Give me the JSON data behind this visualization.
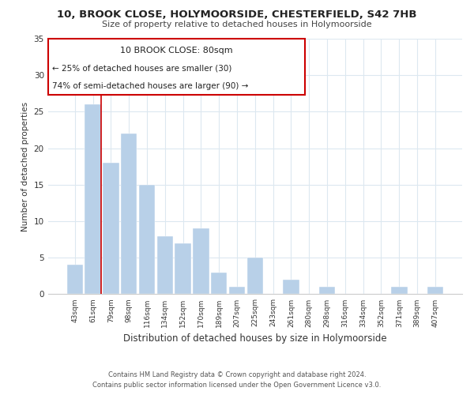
{
  "title": "10, BROOK CLOSE, HOLYMOORSIDE, CHESTERFIELD, S42 7HB",
  "subtitle": "Size of property relative to detached houses in Holymoorside",
  "xlabel": "Distribution of detached houses by size in Holymoorside",
  "ylabel": "Number of detached properties",
  "categories": [
    "43sqm",
    "61sqm",
    "79sqm",
    "98sqm",
    "116sqm",
    "134sqm",
    "152sqm",
    "170sqm",
    "189sqm",
    "207sqm",
    "225sqm",
    "243sqm",
    "261sqm",
    "280sqm",
    "298sqm",
    "316sqm",
    "334sqm",
    "352sqm",
    "371sqm",
    "389sqm",
    "407sqm"
  ],
  "values": [
    4,
    26,
    18,
    22,
    15,
    8,
    7,
    9,
    3,
    1,
    5,
    0,
    2,
    0,
    1,
    0,
    0,
    0,
    1,
    0,
    1
  ],
  "bar_color": "#b8d0e8",
  "highlight_line_color": "#cc0000",
  "ylim": [
    0,
    35
  ],
  "yticks": [
    0,
    5,
    10,
    15,
    20,
    25,
    30,
    35
  ],
  "annotation_title": "10 BROOK CLOSE: 80sqm",
  "annotation_line1": "← 25% of detached houses are smaller (30)",
  "annotation_line2": "74% of semi-detached houses are larger (90) →",
  "footer_line1": "Contains HM Land Registry data © Crown copyright and database right 2024.",
  "footer_line2": "Contains public sector information licensed under the Open Government Licence v3.0.",
  "background_color": "#ffffff",
  "grid_color": "#dce8f0"
}
